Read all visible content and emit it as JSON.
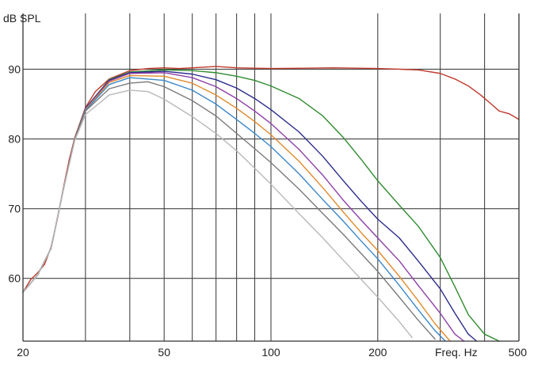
{
  "chart_data": {
    "type": "line",
    "title": "",
    "xlabel": "Freq. Hz",
    "ylabel": "dB SPL",
    "x_scale": "log",
    "xlim": [
      20,
      500
    ],
    "ylim": [
      51,
      98
    ],
    "x_ticks": [
      20,
      50,
      100,
      200,
      500
    ],
    "x_tick_labels": [
      "20",
      "50",
      "100",
      "200",
      "500"
    ],
    "x_gridlines": [
      30,
      40,
      50,
      60,
      70,
      80,
      90,
      100,
      200,
      300,
      400
    ],
    "y_ticks": [
      60,
      70,
      80,
      90
    ],
    "y_tick_labels": [
      "60",
      "70",
      "80",
      "90"
    ],
    "y_gridlines": [
      60,
      70,
      80,
      90
    ],
    "grid": true,
    "legend": "none",
    "series": [
      {
        "color": "#c0392b",
        "points": [
          [
            20,
            58
          ],
          [
            21,
            59.8
          ],
          [
            22,
            60.8
          ],
          [
            23,
            62
          ],
          [
            24,
            64.5
          ],
          [
            25,
            68.5
          ],
          [
            26,
            73
          ],
          [
            27,
            77
          ],
          [
            28,
            80.2
          ],
          [
            30,
            84.5
          ],
          [
            32,
            86.8
          ],
          [
            35,
            88.6
          ],
          [
            40,
            89.8
          ],
          [
            45,
            90.1
          ],
          [
            50,
            90.2
          ],
          [
            55,
            90.1
          ],
          [
            60,
            90.2
          ],
          [
            70,
            90.4
          ],
          [
            80,
            90.2
          ],
          [
            100,
            90.1
          ],
          [
            150,
            90.2
          ],
          [
            200,
            90.1
          ],
          [
            230,
            90
          ],
          [
            260,
            89.9
          ],
          [
            300,
            89.4
          ],
          [
            330,
            88.6
          ],
          [
            360,
            87.6
          ],
          [
            390,
            86.3
          ],
          [
            420,
            84.9
          ],
          [
            440,
            84
          ],
          [
            470,
            83.6
          ],
          [
            500,
            82.8
          ]
        ]
      },
      {
        "color": "#2e8b2e",
        "points": [
          [
            20,
            58
          ],
          [
            22,
            60.5
          ],
          [
            24,
            64.3
          ],
          [
            26,
            72.8
          ],
          [
            28,
            80
          ],
          [
            30,
            84.4
          ],
          [
            35,
            88.5
          ],
          [
            40,
            89.6
          ],
          [
            50,
            89.9
          ],
          [
            60,
            89.8
          ],
          [
            70,
            89.5
          ],
          [
            80,
            89
          ],
          [
            90,
            88.4
          ],
          [
            100,
            87.6
          ],
          [
            120,
            85.8
          ],
          [
            140,
            83.3
          ],
          [
            160,
            80.2
          ],
          [
            180,
            77
          ],
          [
            200,
            74
          ],
          [
            230,
            70.5
          ],
          [
            260,
            67.5
          ],
          [
            300,
            63
          ],
          [
            330,
            58.8
          ],
          [
            360,
            54.8
          ],
          [
            400,
            52
          ],
          [
            440,
            51
          ]
        ]
      },
      {
        "color": "#2b2b8c",
        "points": [
          [
            20,
            58
          ],
          [
            22,
            60.5
          ],
          [
            24,
            64.3
          ],
          [
            26,
            72.8
          ],
          [
            28,
            80
          ],
          [
            30,
            84.4
          ],
          [
            35,
            88.4
          ],
          [
            40,
            89.5
          ],
          [
            50,
            89.7
          ],
          [
            60,
            89.3
          ],
          [
            70,
            88.5
          ],
          [
            80,
            87.3
          ],
          [
            90,
            85.8
          ],
          [
            100,
            84.2
          ],
          [
            120,
            81
          ],
          [
            140,
            77.5
          ],
          [
            160,
            74
          ],
          [
            180,
            71
          ],
          [
            200,
            68.5
          ],
          [
            230,
            65.8
          ],
          [
            260,
            62.5
          ],
          [
            300,
            58.5
          ],
          [
            330,
            55
          ],
          [
            360,
            52
          ],
          [
            380,
            51
          ]
        ]
      },
      {
        "color": "#8e3fa8",
        "points": [
          [
            20,
            58
          ],
          [
            22,
            60.5
          ],
          [
            24,
            64.3
          ],
          [
            26,
            72.8
          ],
          [
            28,
            80
          ],
          [
            30,
            84.3
          ],
          [
            35,
            88.3
          ],
          [
            40,
            89.4
          ],
          [
            50,
            89.5
          ],
          [
            60,
            88.8
          ],
          [
            70,
            87.5
          ],
          [
            80,
            85.8
          ],
          [
            90,
            84
          ],
          [
            100,
            82.2
          ],
          [
            120,
            78.5
          ],
          [
            140,
            74.8
          ],
          [
            160,
            71.2
          ],
          [
            180,
            68.3
          ],
          [
            200,
            65.8
          ],
          [
            230,
            62.5
          ],
          [
            260,
            59
          ],
          [
            300,
            55
          ],
          [
            330,
            52
          ],
          [
            350,
            51
          ]
        ]
      },
      {
        "color": "#e08a2c",
        "points": [
          [
            20,
            58
          ],
          [
            22,
            60.5
          ],
          [
            24,
            64.3
          ],
          [
            26,
            72.8
          ],
          [
            28,
            80
          ],
          [
            30,
            84.2
          ],
          [
            35,
            88.1
          ],
          [
            40,
            89.1
          ],
          [
            50,
            89
          ],
          [
            60,
            88
          ],
          [
            70,
            86.3
          ],
          [
            80,
            84.4
          ],
          [
            90,
            82.5
          ],
          [
            100,
            80.6
          ],
          [
            120,
            76.8
          ],
          [
            140,
            73
          ],
          [
            160,
            69.5
          ],
          [
            180,
            66.5
          ],
          [
            200,
            64
          ],
          [
            230,
            60.3
          ],
          [
            260,
            56.8
          ],
          [
            290,
            53.5
          ],
          [
            320,
            51
          ]
        ]
      },
      {
        "color": "#3a87c9",
        "points": [
          [
            20,
            58
          ],
          [
            22,
            60.5
          ],
          [
            24,
            64.3
          ],
          [
            26,
            72.8
          ],
          [
            28,
            80
          ],
          [
            30,
            84.1
          ],
          [
            35,
            87.8
          ],
          [
            40,
            88.8
          ],
          [
            50,
            88.4
          ],
          [
            60,
            87
          ],
          [
            70,
            85
          ],
          [
            80,
            82.8
          ],
          [
            90,
            80.8
          ],
          [
            100,
            78.9
          ],
          [
            120,
            75
          ],
          [
            140,
            71.3
          ],
          [
            160,
            68.2
          ],
          [
            180,
            65.3
          ],
          [
            200,
            62.8
          ],
          [
            230,
            59
          ],
          [
            260,
            55.5
          ],
          [
            290,
            52.5
          ],
          [
            310,
            51
          ]
        ]
      },
      {
        "color": "#7a7a7a",
        "points": [
          [
            20,
            58
          ],
          [
            22,
            60.5
          ],
          [
            24,
            64.3
          ],
          [
            26,
            72.8
          ],
          [
            28,
            80
          ],
          [
            30,
            84
          ],
          [
            35,
            87.2
          ],
          [
            40,
            88
          ],
          [
            45,
            88.2
          ],
          [
            50,
            87.5
          ],
          [
            60,
            85.5
          ],
          [
            70,
            83.3
          ],
          [
            80,
            80.8
          ],
          [
            90,
            78.6
          ],
          [
            100,
            76.6
          ],
          [
            120,
            72.8
          ],
          [
            140,
            69.3
          ],
          [
            160,
            66.3
          ],
          [
            180,
            63.5
          ],
          [
            200,
            61
          ],
          [
            230,
            57.3
          ],
          [
            260,
            54
          ],
          [
            290,
            51.3
          ]
        ]
      },
      {
        "color": "#b8b8b8",
        "points": [
          [
            20,
            58
          ],
          [
            22,
            60.5
          ],
          [
            24,
            64.3
          ],
          [
            26,
            72.8
          ],
          [
            28,
            79.8
          ],
          [
            30,
            83.5
          ],
          [
            35,
            86.3
          ],
          [
            40,
            87
          ],
          [
            45,
            86.8
          ],
          [
            50,
            85.7
          ],
          [
            60,
            83.2
          ],
          [
            70,
            80.8
          ],
          [
            80,
            78.3
          ],
          [
            90,
            75.8
          ],
          [
            100,
            73.5
          ],
          [
            120,
            69.3
          ],
          [
            140,
            65.8
          ],
          [
            160,
            62.6
          ],
          [
            180,
            59.8
          ],
          [
            200,
            57.3
          ],
          [
            230,
            53.8
          ],
          [
            250,
            51.5
          ]
        ]
      }
    ]
  }
}
